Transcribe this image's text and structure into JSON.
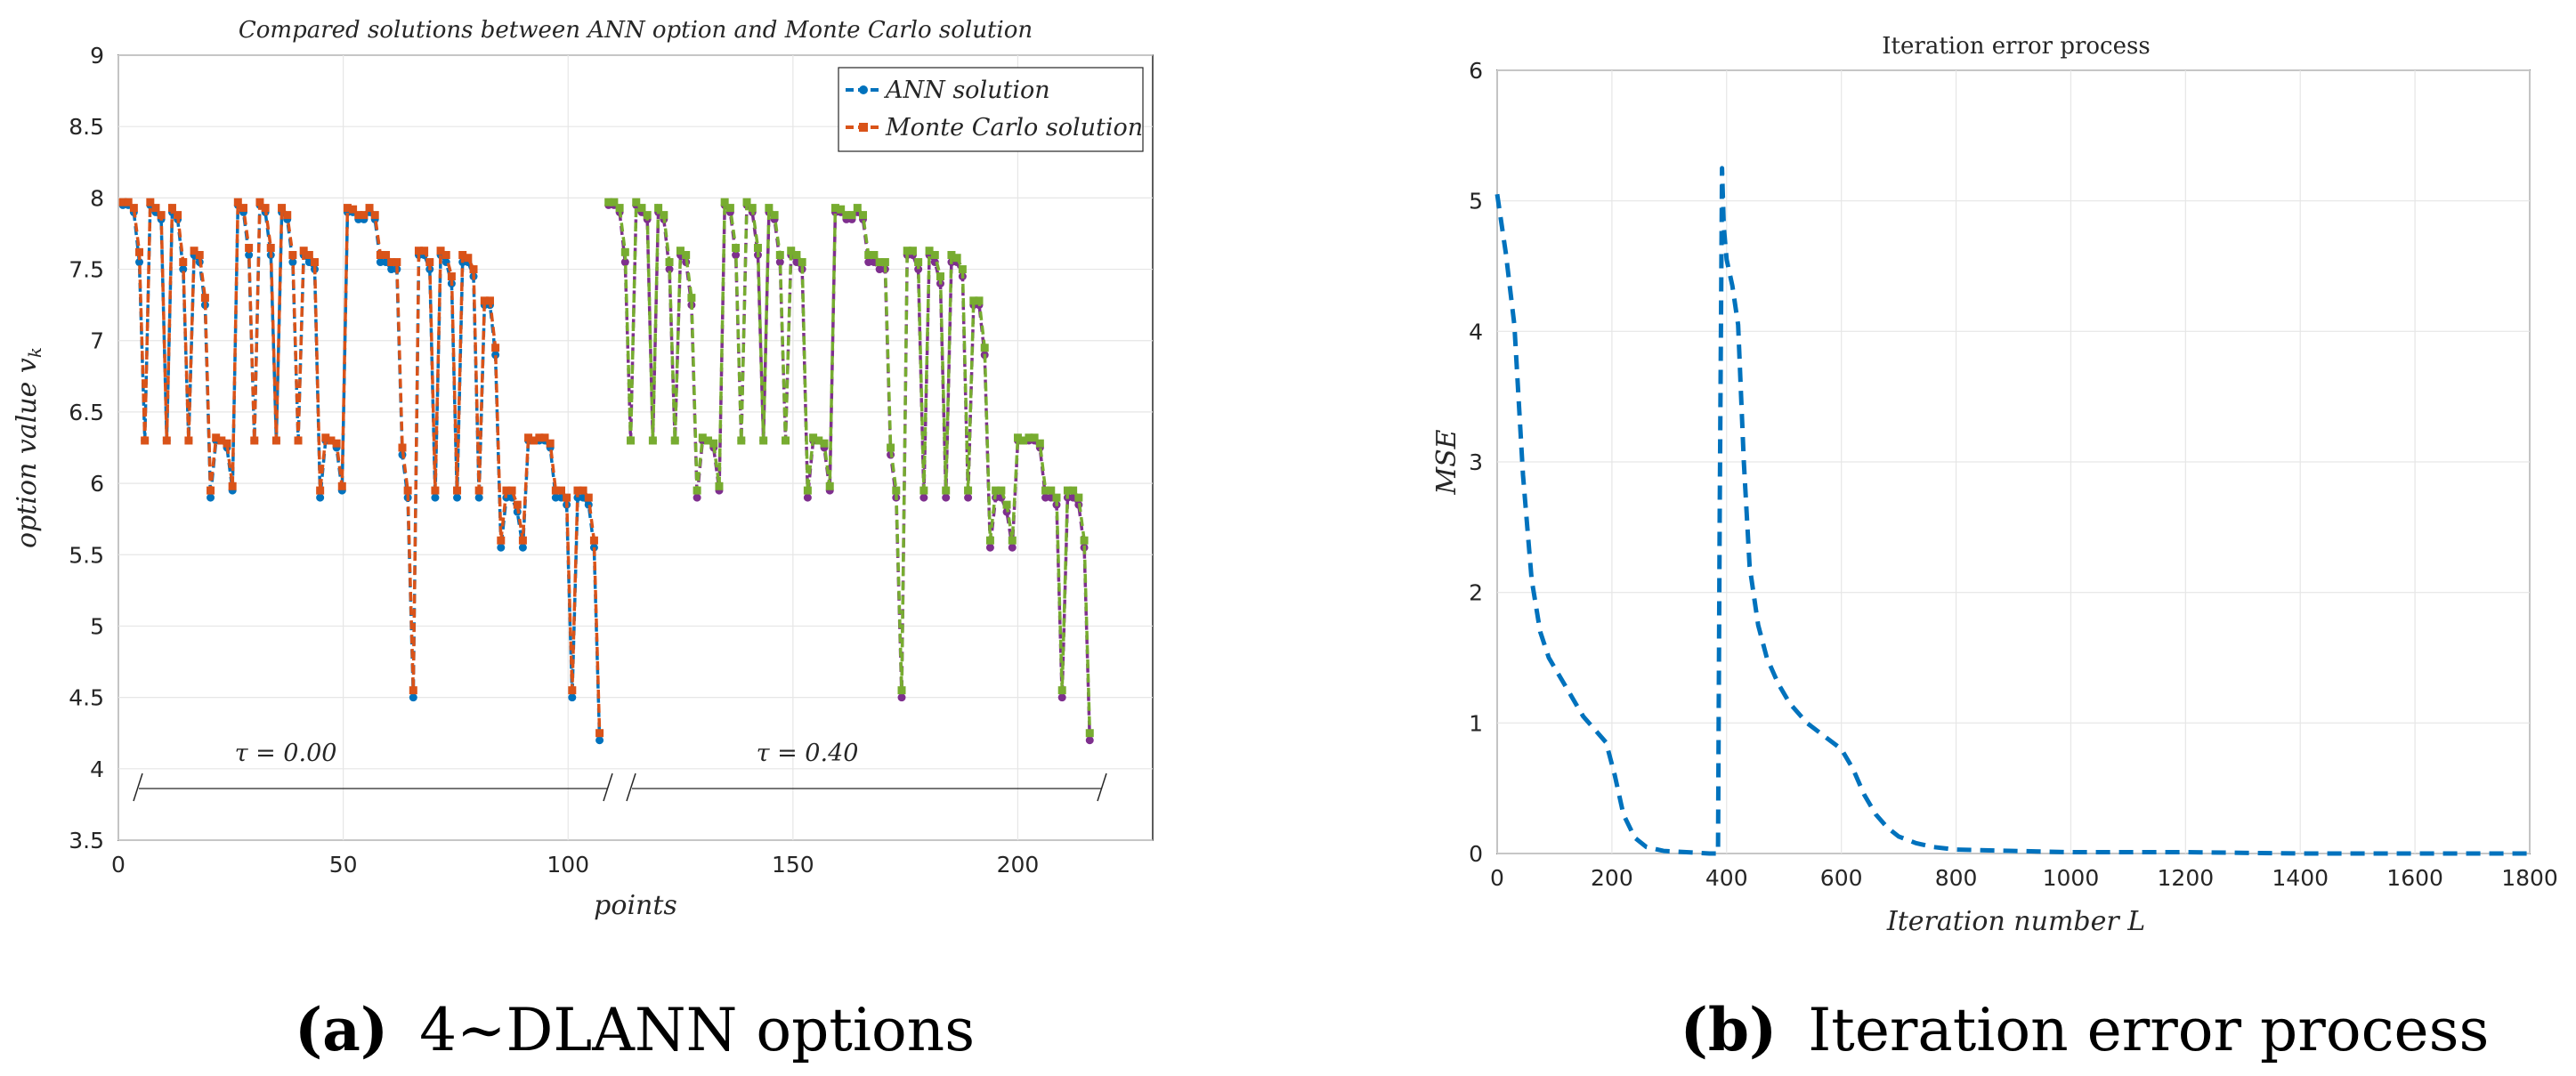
{
  "captions": {
    "a_label": "(a)",
    "a_text": "4∼DLANN options",
    "b_label": "(b)",
    "b_text": "Iteration error process"
  },
  "colors": {
    "ann": "#0072BD",
    "mc": "#D95319",
    "ann_tau2": "#7E2F8E",
    "mc_tau2": "#77AC30",
    "mse": "#0072BD"
  },
  "chart_data": [
    {
      "type": "line",
      "title": "Compared solutions between ANN option and Monte Carlo solution",
      "xlabel": "points",
      "ylabel": "option value v_k",
      "xlim": [
        0,
        230
      ],
      "ylim": [
        3.5,
        9
      ],
      "xticks": [
        0,
        50,
        100,
        150,
        200
      ],
      "yticks": [
        3.5,
        4,
        4.5,
        5,
        5.5,
        6,
        6.5,
        7,
        7.5,
        8,
        8.5,
        9
      ],
      "ytick_labels": [
        "3.5",
        "4",
        "4.5",
        "5",
        "5.5",
        "6",
        "6.5",
        "7",
        "7.5",
        "8",
        "8.5",
        "9"
      ],
      "grid": true,
      "legend": [
        "ANN solution",
        "Monte Carlo solution"
      ],
      "legend_position": "top-right",
      "annotations": {
        "tau1": "τ = 0.00",
        "tau2": "τ = 0.40"
      },
      "series": [
        {
          "name": "ANN solution",
          "x_start": 1,
          "values": [
            7.95,
            7.95,
            7.9,
            7.55,
            6.3,
            7.95,
            7.9,
            7.85,
            6.3,
            7.9,
            7.85,
            7.5,
            6.3,
            7.6,
            7.55,
            7.25,
            5.9,
            6.3,
            6.3,
            6.25,
            5.95,
            7.95,
            7.9,
            7.6,
            6.3,
            7.95,
            7.9,
            7.6,
            6.3,
            7.9,
            7.85,
            7.55,
            6.3,
            7.6,
            7.55,
            7.5,
            5.9,
            6.3,
            6.3,
            6.25,
            5.95,
            7.9,
            7.9,
            7.85,
            7.85,
            7.9,
            7.85,
            7.55,
            7.55,
            7.5,
            7.5,
            6.2,
            5.9,
            4.5,
            7.6,
            7.6,
            7.5,
            5.9,
            7.6,
            7.55,
            7.4,
            5.9,
            7.55,
            7.55,
            7.45,
            5.9,
            7.25,
            7.25,
            6.9,
            5.55,
            5.9,
            5.9,
            5.8,
            5.55,
            6.3,
            6.3,
            6.3,
            6.3,
            6.25,
            5.9,
            5.9,
            5.85,
            4.5,
            5.9,
            5.9,
            5.85,
            5.55,
            4.2
          ],
          "x_end": 107
        },
        {
          "name": "Monte Carlo solution",
          "x_start": 1,
          "values": [
            7.97,
            7.97,
            7.93,
            7.62,
            6.3,
            7.97,
            7.93,
            7.88,
            6.3,
            7.93,
            7.88,
            7.55,
            6.3,
            7.63,
            7.6,
            7.3,
            5.95,
            6.32,
            6.3,
            6.28,
            5.98,
            7.97,
            7.93,
            7.65,
            6.3,
            7.97,
            7.93,
            7.65,
            6.3,
            7.93,
            7.88,
            7.6,
            6.3,
            7.63,
            7.6,
            7.55,
            5.95,
            6.32,
            6.3,
            6.28,
            5.98,
            7.93,
            7.92,
            7.88,
            7.88,
            7.93,
            7.88,
            7.6,
            7.6,
            7.55,
            7.55,
            6.25,
            5.95,
            4.55,
            7.63,
            7.63,
            7.55,
            5.95,
            7.63,
            7.6,
            7.45,
            5.95,
            7.6,
            7.58,
            7.5,
            5.95,
            7.28,
            7.28,
            6.95,
            5.6,
            5.95,
            5.95,
            5.85,
            5.6,
            6.32,
            6.3,
            6.32,
            6.32,
            6.28,
            5.95,
            5.95,
            5.9,
            4.55,
            5.95,
            5.95,
            5.9,
            5.6,
            4.25
          ],
          "x_end": 107
        },
        {
          "name": "ANN solution (τ = 0.40)",
          "x_start": 109,
          "values": [
            7.95,
            7.95,
            7.9,
            7.55,
            6.3,
            7.95,
            7.9,
            7.85,
            6.3,
            7.9,
            7.85,
            7.5,
            6.3,
            7.6,
            7.55,
            7.25,
            5.9,
            6.3,
            6.3,
            6.25,
            5.95,
            7.95,
            7.9,
            7.6,
            6.3,
            7.95,
            7.9,
            7.6,
            6.3,
            7.9,
            7.85,
            7.55,
            6.3,
            7.6,
            7.55,
            7.5,
            5.9,
            6.3,
            6.3,
            6.25,
            5.95,
            7.9,
            7.9,
            7.85,
            7.85,
            7.9,
            7.85,
            7.55,
            7.55,
            7.5,
            7.5,
            6.2,
            5.9,
            4.5,
            7.6,
            7.6,
            7.5,
            5.9,
            7.6,
            7.55,
            7.4,
            5.9,
            7.55,
            7.55,
            7.45,
            5.9,
            7.25,
            7.25,
            6.9,
            5.55,
            5.9,
            5.9,
            5.8,
            5.55,
            6.3,
            6.3,
            6.3,
            6.3,
            6.25,
            5.9,
            5.9,
            5.85,
            4.5,
            5.9,
            5.9,
            5.85,
            5.55,
            4.2
          ],
          "x_end": 216
        },
        {
          "name": "Monte Carlo solution (τ = 0.40)",
          "x_start": 109,
          "values": [
            7.97,
            7.97,
            7.93,
            7.62,
            6.3,
            7.97,
            7.93,
            7.88,
            6.3,
            7.93,
            7.88,
            7.55,
            6.3,
            7.63,
            7.6,
            7.3,
            5.95,
            6.32,
            6.3,
            6.28,
            5.98,
            7.97,
            7.93,
            7.65,
            6.3,
            7.97,
            7.93,
            7.65,
            6.3,
            7.93,
            7.88,
            7.6,
            6.3,
            7.63,
            7.6,
            7.55,
            5.95,
            6.32,
            6.3,
            6.28,
            5.98,
            7.93,
            7.92,
            7.88,
            7.88,
            7.93,
            7.88,
            7.6,
            7.6,
            7.55,
            7.55,
            6.25,
            5.95,
            4.55,
            7.63,
            7.63,
            7.55,
            5.95,
            7.63,
            7.6,
            7.45,
            5.95,
            7.6,
            7.58,
            7.5,
            5.95,
            7.28,
            7.28,
            6.95,
            5.6,
            5.95,
            5.95,
            5.85,
            5.6,
            6.32,
            6.3,
            6.32,
            6.32,
            6.28,
            5.95,
            5.95,
            5.9,
            4.55,
            5.95,
            5.95,
            5.9,
            5.6,
            4.25
          ],
          "x_end": 216
        }
      ]
    },
    {
      "type": "line",
      "title": "Iteration error process",
      "xlabel": "Iteration number L",
      "ylabel": "MSE",
      "xlim": [
        0,
        1800
      ],
      "ylim": [
        0,
        6
      ],
      "xticks": [
        0,
        200,
        400,
        600,
        800,
        1000,
        1200,
        1400,
        1600,
        1800
      ],
      "yticks": [
        0,
        1,
        2,
        3,
        4,
        5,
        6
      ],
      "grid": true,
      "series": [
        {
          "name": "MSE",
          "x": [
            0,
            15,
            30,
            45,
            60,
            75,
            90,
            110,
            130,
            150,
            170,
            190,
            205,
            220,
            240,
            260,
            290,
            330,
            370,
            385,
            388,
            392,
            395,
            400,
            410,
            420,
            430,
            440,
            455,
            470,
            490,
            510,
            540,
            570,
            600,
            620,
            640,
            660,
            680,
            700,
            730,
            760,
            800,
            900,
            1000,
            1200,
            1400,
            1600,
            1800
          ],
          "y": [
            5.05,
            4.6,
            4.05,
            2.9,
            2.1,
            1.7,
            1.5,
            1.35,
            1.2,
            1.05,
            0.95,
            0.85,
            0.6,
            0.3,
            0.12,
            0.05,
            0.02,
            0.01,
            0.0,
            0.0,
            2.6,
            5.25,
            4.8,
            4.55,
            4.35,
            4.05,
            3.0,
            2.2,
            1.75,
            1.5,
            1.3,
            1.15,
            1.0,
            0.9,
            0.8,
            0.65,
            0.45,
            0.3,
            0.2,
            0.13,
            0.08,
            0.05,
            0.03,
            0.02,
            0.01,
            0.01,
            0.0,
            0.0,
            0.0
          ]
        }
      ]
    }
  ]
}
